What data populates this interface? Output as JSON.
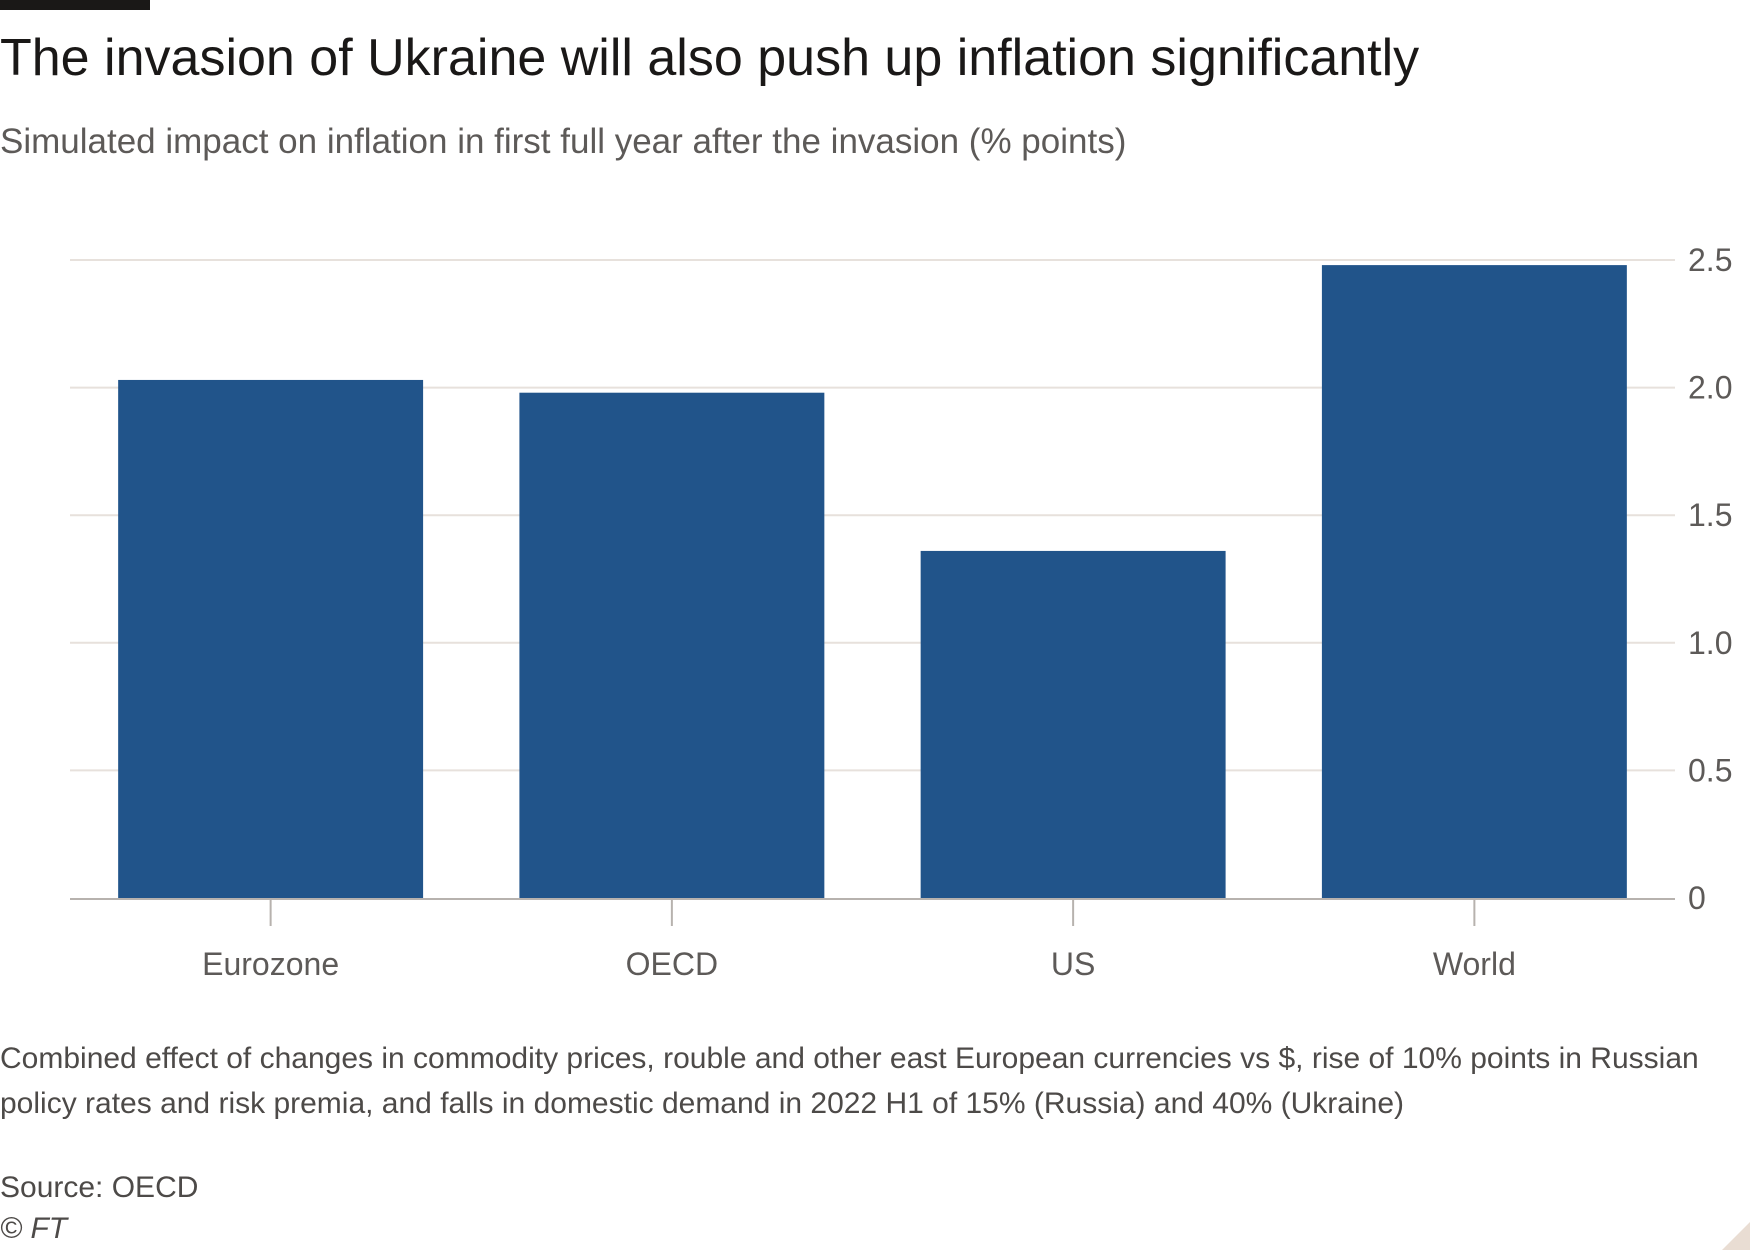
{
  "header": {
    "title": "The invasion of Ukraine will also push up inflation significantly",
    "subtitle": "Simulated impact on inflation in first full year after the invasion (% points)"
  },
  "footer": {
    "note": "Combined effect of changes in commodity prices, rouble and other east European currencies vs $, rise of 10% points in Russian policy rates and risk premia, and falls in domestic demand in 2022 H1 of 15% (Russia) and 40% (Ukraine)",
    "source": "Source: OECD",
    "copyright": "© FT"
  },
  "chart_data": {
    "type": "bar",
    "title": "The invasion of Ukraine will also push up inflation significantly",
    "subtitle": "Simulated impact on inflation in first full year after the invasion (% points)",
    "categories": [
      "Eurozone",
      "OECD",
      "US",
      "World"
    ],
    "values": [
      2.03,
      1.98,
      1.36,
      2.48
    ],
    "ylim": [
      0,
      2.5
    ],
    "yticks": [
      0,
      0.5,
      1.0,
      1.5,
      2.0,
      2.5
    ],
    "ytick_labels": [
      "0",
      "0.5",
      "1.0",
      "1.5",
      "2.0",
      "2.5"
    ],
    "y_axis_side": "right",
    "grid": true,
    "legend": "none",
    "bar_color": "#21548a",
    "grid_color": "#e7e1dc"
  }
}
